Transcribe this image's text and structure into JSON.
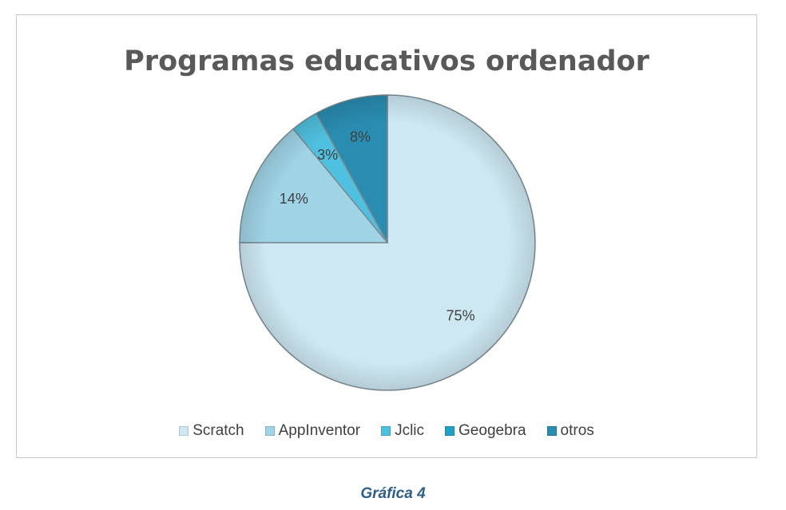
{
  "chart_data": {
    "type": "pie",
    "title": "Programas educativos ordenador",
    "categories": [
      "Scratch",
      "AppInventor",
      "Jclic",
      "Geogebra",
      "otros"
    ],
    "values": [
      75,
      14,
      3,
      0,
      8
    ],
    "data_labels": [
      "75%",
      "14%",
      "3%",
      "",
      "8%"
    ],
    "colors": [
      "#cde8f3",
      "#9fd3e6",
      "#4fc0df",
      "#1f9fc6",
      "#2a8cb0"
    ],
    "legend_position": "bottom"
  },
  "caption": "Gráfica 4"
}
